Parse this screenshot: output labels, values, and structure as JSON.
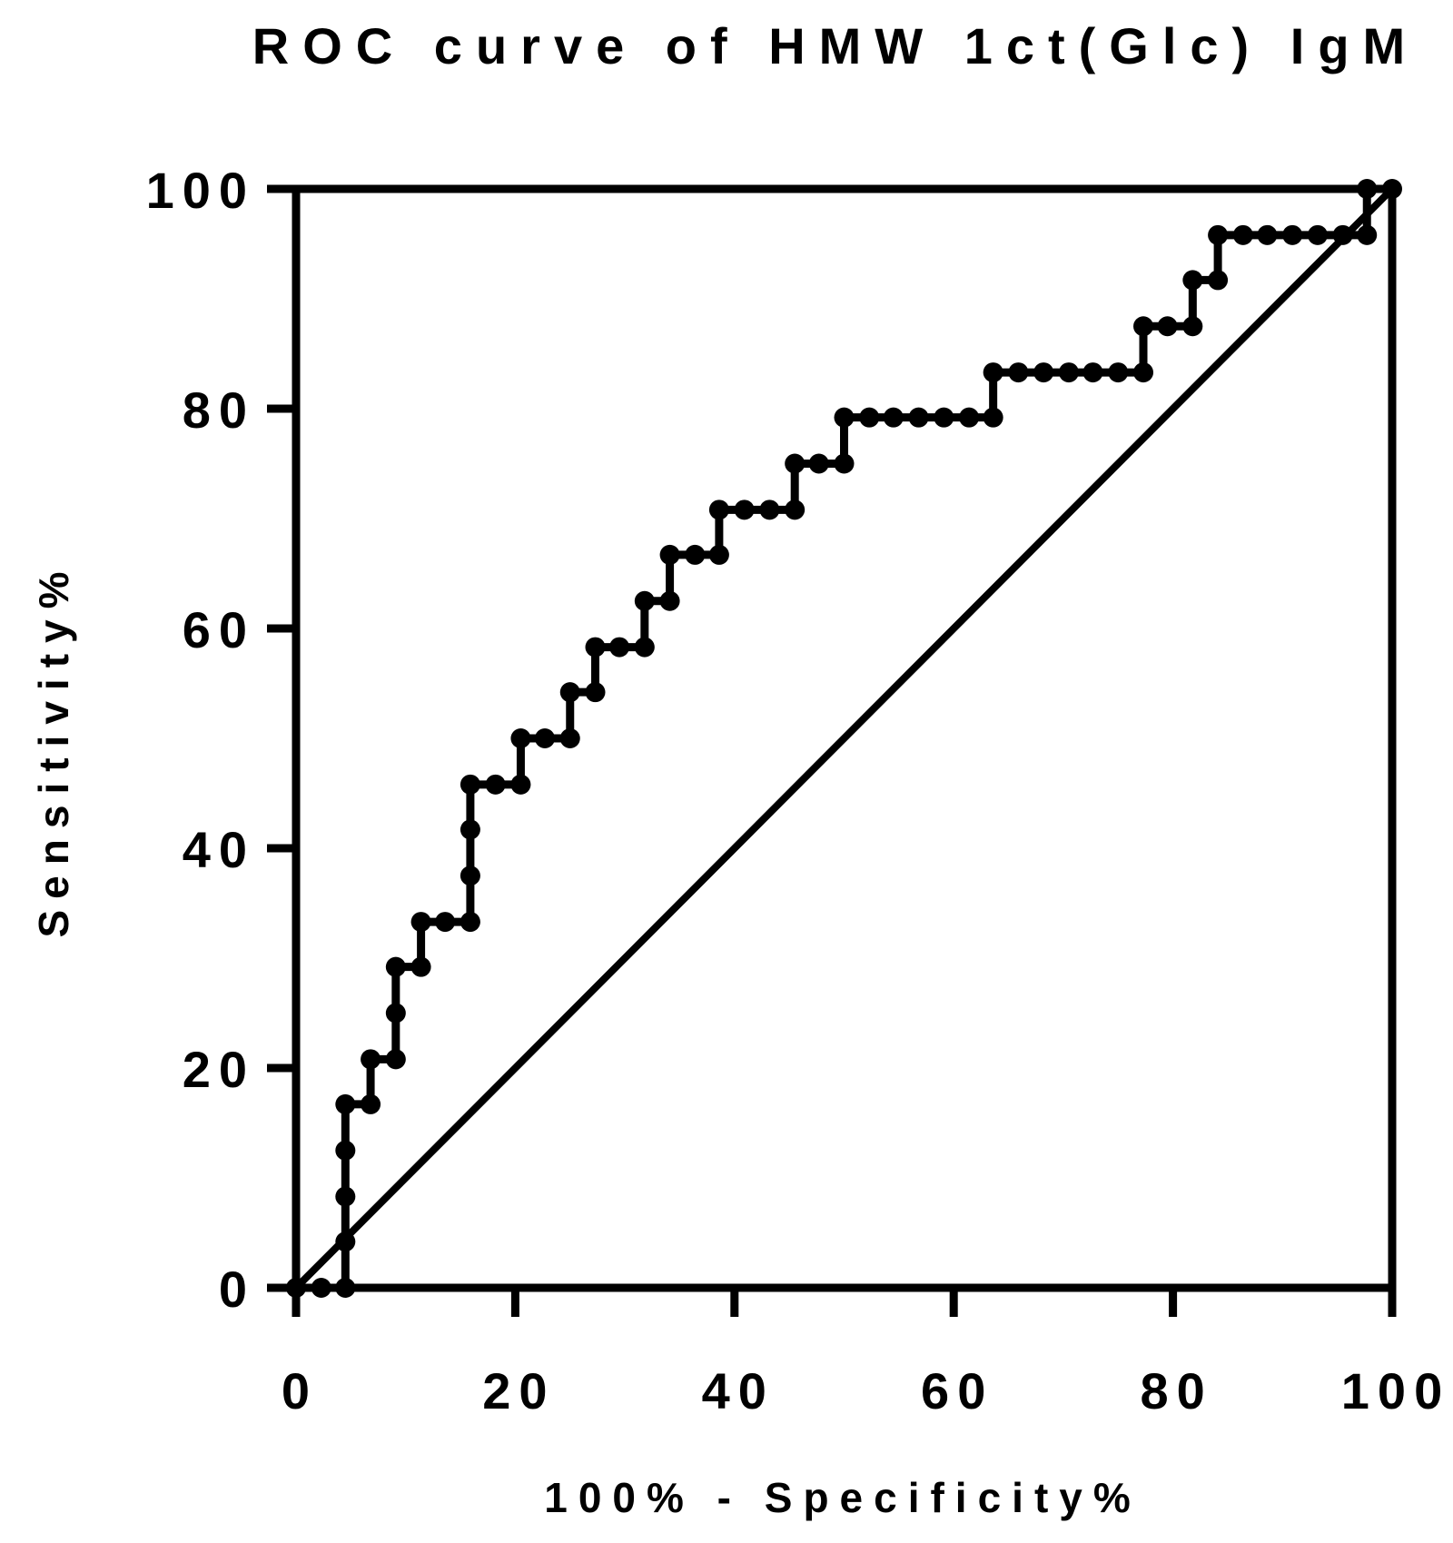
{
  "chart_data": {
    "type": "line",
    "title": "ROC curve of HMW 1ct(Glc) IgM",
    "xlabel": "100% - Specificity%",
    "ylabel": "Sensitivity%",
    "xlim": [
      0,
      100
    ],
    "ylim": [
      0,
      100
    ],
    "x_ticks": [
      0,
      20,
      40,
      60,
      80,
      100
    ],
    "y_ticks": [
      0,
      20,
      40,
      60,
      80,
      100
    ],
    "x_tick_labels": [
      "0",
      "20",
      "40",
      "60",
      "80",
      "100"
    ],
    "y_tick_labels": [
      "0",
      "20",
      "40",
      "60",
      "80",
      "100"
    ],
    "grid": false,
    "legend": "none",
    "line_color": "#000000",
    "series": [
      {
        "kind": "roc-step",
        "x": [
          0,
          2.3,
          4.5,
          4.5,
          4.5,
          4.5,
          4.5,
          6.8,
          6.8,
          9.1,
          9.1,
          9.1,
          11.4,
          11.4,
          13.6,
          15.9,
          15.9,
          15.9,
          15.9,
          18.2,
          20.5,
          20.5,
          22.7,
          25.0,
          25.0,
          27.3,
          27.3,
          29.5,
          31.8,
          31.8,
          34.1,
          34.1,
          36.4,
          38.6,
          38.6,
          40.9,
          43.2,
          45.5,
          45.5,
          47.7,
          50.0,
          50.0,
          52.3,
          54.5,
          56.8,
          59.1,
          61.4,
          63.6,
          63.6,
          65.9,
          68.2,
          70.5,
          72.7,
          75.0,
          77.3,
          77.3,
          79.5,
          81.8,
          81.8,
          84.1,
          84.1,
          86.4,
          88.6,
          90.9,
          93.2,
          95.5,
          97.7,
          97.7,
          100
        ],
        "y": [
          0,
          0,
          0,
          4.2,
          8.3,
          12.5,
          16.7,
          16.7,
          20.8,
          20.8,
          25.0,
          29.2,
          29.2,
          33.3,
          33.3,
          33.3,
          37.5,
          41.7,
          45.8,
          45.8,
          45.8,
          50.0,
          50.0,
          50.0,
          54.2,
          54.2,
          58.3,
          58.3,
          58.3,
          62.5,
          62.5,
          66.7,
          66.7,
          66.7,
          70.8,
          70.8,
          70.8,
          70.8,
          75.0,
          75.0,
          75.0,
          79.2,
          79.2,
          79.2,
          79.2,
          79.2,
          79.2,
          79.2,
          83.3,
          83.3,
          83.3,
          83.3,
          83.3,
          83.3,
          83.3,
          87.5,
          87.5,
          87.5,
          91.7,
          91.7,
          95.8,
          95.8,
          95.8,
          95.8,
          95.8,
          95.8,
          95.8,
          100,
          100
        ]
      },
      {
        "kind": "reference-diagonal",
        "x": [
          0,
          100
        ],
        "y": [
          0,
          100
        ]
      }
    ]
  }
}
